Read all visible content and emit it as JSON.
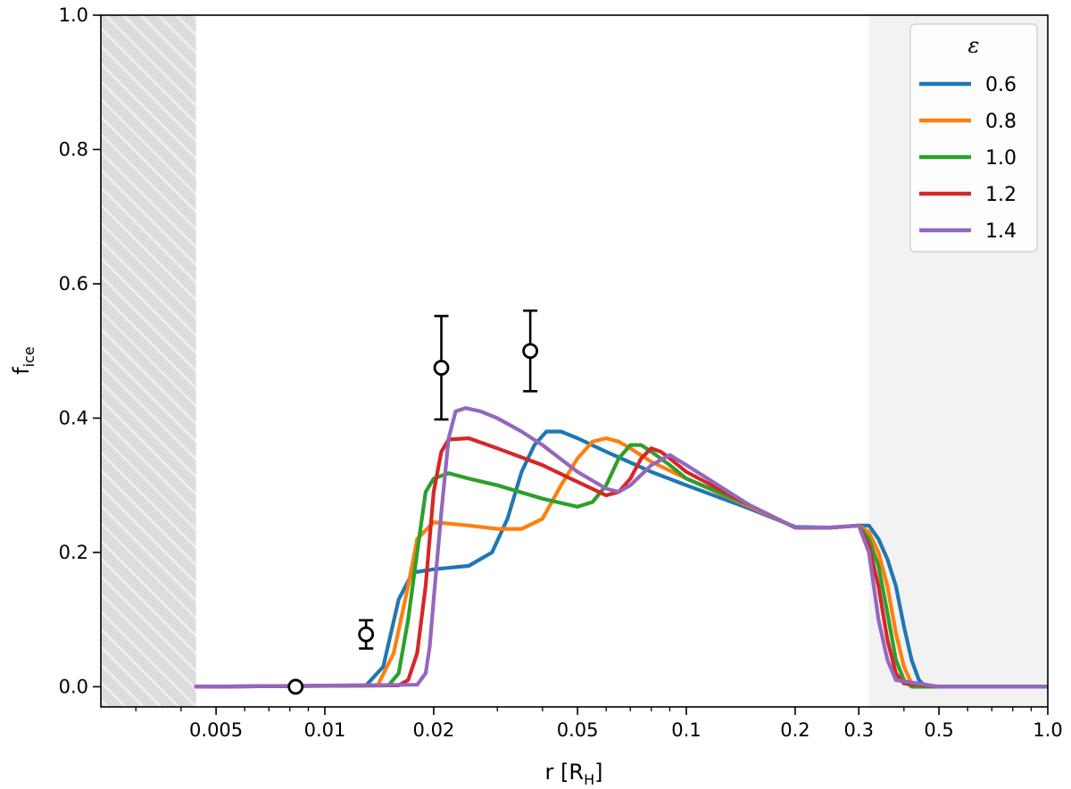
{
  "chart_data": {
    "type": "line",
    "xlabel_main": "r [R",
    "xlabel_sub": "H",
    "xlabel_end": "]",
    "ylabel_main": "f",
    "ylabel_sub": "ice",
    "xscale": "log",
    "xlim": [
      0.0024,
      1.0
    ],
    "ylim": [
      -0.03,
      1.0
    ],
    "grid": false,
    "x_ticks": [
      {
        "value": 0.005,
        "label": "0.005"
      },
      {
        "value": 0.01,
        "label": "0.01"
      },
      {
        "value": 0.02,
        "label": "0.02"
      },
      {
        "value": 0.05,
        "label": "0.05"
      },
      {
        "value": 0.1,
        "label": "0.1"
      },
      {
        "value": 0.2,
        "label": "0.2"
      },
      {
        "value": 0.3,
        "label": "0.3"
      },
      {
        "value": 0.5,
        "label": "0.5"
      },
      {
        "value": 1.0,
        "label": "1.0"
      }
    ],
    "y_ticks": [
      {
        "value": 0.0,
        "label": "0.0"
      },
      {
        "value": 0.2,
        "label": "0.2"
      },
      {
        "value": 0.4,
        "label": "0.4"
      },
      {
        "value": 0.6,
        "label": "0.6"
      },
      {
        "value": 0.8,
        "label": "0.8"
      },
      {
        "value": 1.0,
        "label": "1.0"
      }
    ],
    "shaded_regions": [
      {
        "x0": 0.0024,
        "x1": 0.0044,
        "style": "hatched",
        "color": "#dcdcdc"
      },
      {
        "x0": 0.32,
        "x1": 1.0,
        "style": "solid",
        "color": "#f2f2f2"
      }
    ],
    "legend": {
      "title": "ε",
      "position": "top-right"
    },
    "series": [
      {
        "name": "0.6",
        "color": "#1f77b4",
        "x": [
          0.0044,
          0.013,
          0.0145,
          0.016,
          0.0175,
          0.02,
          0.025,
          0.029,
          0.032,
          0.035,
          0.038,
          0.041,
          0.045,
          0.05,
          0.06,
          0.08,
          0.1,
          0.15,
          0.2,
          0.25,
          0.3,
          0.32,
          0.34,
          0.36,
          0.38,
          0.4,
          0.42,
          0.44,
          0.46,
          0.5,
          1.0
        ],
        "y": [
          0.0,
          0.002,
          0.03,
          0.13,
          0.17,
          0.175,
          0.18,
          0.2,
          0.25,
          0.32,
          0.36,
          0.38,
          0.38,
          0.37,
          0.35,
          0.32,
          0.3,
          0.265,
          0.238,
          0.237,
          0.24,
          0.24,
          0.22,
          0.19,
          0.15,
          0.09,
          0.04,
          0.01,
          0.0,
          0.0,
          0.0
        ]
      },
      {
        "name": "0.8",
        "color": "#ff7f0e",
        "x": [
          0.0044,
          0.014,
          0.0155,
          0.017,
          0.018,
          0.02,
          0.025,
          0.03,
          0.035,
          0.04,
          0.045,
          0.05,
          0.055,
          0.06,
          0.065,
          0.07,
          0.08,
          0.1,
          0.15,
          0.2,
          0.25,
          0.3,
          0.32,
          0.34,
          0.36,
          0.38,
          0.4,
          0.42,
          0.44,
          0.5,
          1.0
        ],
        "y": [
          0.0,
          0.002,
          0.05,
          0.15,
          0.22,
          0.245,
          0.24,
          0.235,
          0.235,
          0.25,
          0.3,
          0.34,
          0.365,
          0.37,
          0.365,
          0.355,
          0.335,
          0.31,
          0.268,
          0.237,
          0.237,
          0.24,
          0.23,
          0.2,
          0.15,
          0.08,
          0.03,
          0.005,
          0.0,
          0.0,
          0.0
        ]
      },
      {
        "name": "1.0",
        "color": "#2ca02c",
        "x": [
          0.0044,
          0.015,
          0.016,
          0.017,
          0.018,
          0.019,
          0.02,
          0.022,
          0.025,
          0.03,
          0.04,
          0.05,
          0.055,
          0.06,
          0.065,
          0.07,
          0.075,
          0.08,
          0.09,
          0.1,
          0.15,
          0.2,
          0.25,
          0.3,
          0.32,
          0.34,
          0.36,
          0.38,
          0.4,
          0.42,
          0.5,
          1.0
        ],
        "y": [
          0.0,
          0.002,
          0.02,
          0.1,
          0.2,
          0.29,
          0.31,
          0.318,
          0.31,
          0.3,
          0.28,
          0.268,
          0.275,
          0.3,
          0.34,
          0.36,
          0.36,
          0.35,
          0.33,
          0.31,
          0.27,
          0.237,
          0.237,
          0.24,
          0.22,
          0.18,
          0.11,
          0.04,
          0.01,
          0.0,
          0.0,
          0.0
        ]
      },
      {
        "name": "1.2",
        "color": "#d62728",
        "x": [
          0.0044,
          0.016,
          0.017,
          0.018,
          0.019,
          0.02,
          0.021,
          0.022,
          0.025,
          0.03,
          0.04,
          0.05,
          0.06,
          0.065,
          0.07,
          0.075,
          0.08,
          0.085,
          0.09,
          0.1,
          0.15,
          0.2,
          0.25,
          0.3,
          0.32,
          0.34,
          0.36,
          0.38,
          0.4,
          0.5,
          1.0
        ],
        "y": [
          0.0,
          0.002,
          0.01,
          0.05,
          0.15,
          0.29,
          0.35,
          0.368,
          0.37,
          0.355,
          0.33,
          0.305,
          0.285,
          0.29,
          0.31,
          0.34,
          0.355,
          0.35,
          0.34,
          0.32,
          0.27,
          0.237,
          0.237,
          0.24,
          0.21,
          0.15,
          0.07,
          0.02,
          0.005,
          0.0,
          0.0
        ]
      },
      {
        "name": "1.4",
        "color": "#9467bd",
        "x": [
          0.0044,
          0.018,
          0.019,
          0.0195,
          0.02,
          0.021,
          0.022,
          0.023,
          0.0245,
          0.027,
          0.03,
          0.035,
          0.04,
          0.05,
          0.06,
          0.065,
          0.07,
          0.08,
          0.09,
          0.1,
          0.15,
          0.2,
          0.25,
          0.3,
          0.32,
          0.33,
          0.34,
          0.36,
          0.38,
          0.5,
          1.0
        ],
        "y": [
          0.0,
          0.003,
          0.02,
          0.06,
          0.13,
          0.26,
          0.37,
          0.41,
          0.415,
          0.41,
          0.4,
          0.38,
          0.36,
          0.32,
          0.295,
          0.29,
          0.3,
          0.33,
          0.345,
          0.33,
          0.27,
          0.237,
          0.237,
          0.24,
          0.2,
          0.15,
          0.1,
          0.04,
          0.01,
          0.0,
          0.0
        ]
      }
    ],
    "observations": [
      {
        "x": 0.0083,
        "y": 0.0,
        "err": 0.0
      },
      {
        "x": 0.013,
        "y": 0.078,
        "err": 0.021
      },
      {
        "x": 0.021,
        "y": 0.475,
        "err": 0.077
      },
      {
        "x": 0.037,
        "y": 0.5,
        "err": 0.06
      }
    ]
  }
}
